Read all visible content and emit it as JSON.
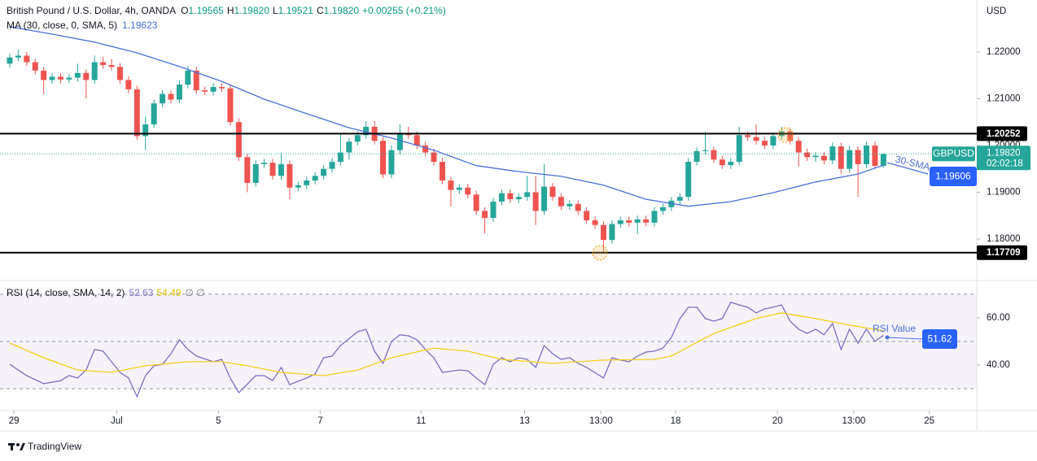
{
  "header": {
    "symbol": "British Pound / U.S. Dollar, 4h, OANDA",
    "ohlc": [
      [
        "O",
        "1.19565"
      ],
      [
        "H",
        "1.19820"
      ],
      [
        "L",
        "1.19521"
      ],
      [
        "C",
        "1.19820"
      ]
    ],
    "change": "+0.00255 (+0.21%)"
  },
  "chart_data": [
    {
      "type": "candlestick",
      "currency": "USD",
      "up_color": "#26a69a",
      "down_color": "#ef5350",
      "open": [
        1.2175,
        1.2188,
        1.2192,
        1.2178,
        1.216,
        1.214,
        1.2147,
        1.2141,
        1.2145,
        1.2155,
        1.214,
        1.2178,
        1.2172,
        1.2168,
        1.214,
        1.212,
        1.202,
        1.2045,
        1.209,
        1.211,
        1.2098,
        1.213,
        1.216,
        1.2118,
        1.2115,
        1.2125,
        1.2122,
        1.205,
        1.1975,
        1.192,
        1.196,
        1.1963,
        1.1935,
        1.196,
        1.191,
        1.1915,
        1.1925,
        1.1935,
        1.195,
        1.1965,
        1.1985,
        1.2008,
        1.2022,
        1.204,
        1.201,
        1.1938,
        1.199,
        1.2025,
        1.2022,
        1.2,
        1.1985,
        1.1965,
        1.1925,
        1.1905,
        1.191,
        1.1895,
        1.186,
        1.1845,
        1.188,
        1.1898,
        1.1885,
        1.189,
        1.19,
        1.186,
        1.1912,
        1.189,
        1.187,
        1.1875,
        1.186,
        1.184,
        1.183,
        1.1798,
        1.1832,
        1.184,
        1.1835,
        1.1842,
        1.1835,
        1.186,
        1.1868,
        1.1882,
        1.189,
        1.1965,
        1.1988,
        1.199,
        1.197,
        1.1958,
        1.1965,
        1.2022,
        1.2018,
        1.201,
        1.2,
        1.202,
        1.203,
        1.201,
        1.1985,
        1.1975,
        1.1978,
        1.1968,
        1.1998,
        1.195,
        1.199,
        1.196,
        1.2,
        1.19565
      ],
      "high": [
        1.2196,
        1.2205,
        1.22,
        1.2186,
        1.2168,
        1.2155,
        1.2155,
        1.2153,
        1.2175,
        1.2163,
        1.2192,
        1.219,
        1.2185,
        1.2176,
        1.2148,
        1.2128,
        1.2062,
        1.2098,
        1.2118,
        1.2118,
        1.214,
        1.217,
        1.2168,
        1.2126,
        1.2133,
        1.2133,
        1.213,
        1.2058,
        1.1983,
        1.1968,
        1.1971,
        1.1971,
        1.1985,
        1.1968,
        1.1923,
        1.1933,
        1.1943,
        1.1958,
        1.1973,
        1.2025,
        1.2016,
        1.203,
        1.2052,
        1.2052,
        1.2018,
        1.2,
        1.2045,
        1.204,
        1.203,
        1.2008,
        1.1993,
        1.1973,
        1.1933,
        1.1918,
        1.1918,
        1.1903,
        1.1868,
        1.1888,
        1.1906,
        1.1906,
        1.1898,
        1.1935,
        1.1935,
        1.196,
        1.192,
        1.1898,
        1.1883,
        1.1883,
        1.1868,
        1.1848,
        1.1838,
        1.184,
        1.1848,
        1.1848,
        1.185,
        1.185,
        1.1868,
        1.1876,
        1.189,
        1.1898,
        1.1973,
        1.1996,
        1.203,
        1.1998,
        1.1978,
        1.1973,
        1.204,
        1.203,
        1.2045,
        1.2018,
        1.2028,
        1.204,
        1.2038,
        1.2018,
        1.1993,
        1.1986,
        1.1986,
        1.2006,
        1.2006,
        1.1998,
        1.1998,
        1.2008,
        1.2008,
        1.1982
      ],
      "low": [
        1.2167,
        1.218,
        1.217,
        1.2152,
        1.211,
        1.2132,
        1.2133,
        1.2133,
        1.2137,
        1.21,
        1.2132,
        1.2164,
        1.216,
        1.2132,
        1.2112,
        1.2012,
        1.199,
        1.2037,
        1.2082,
        1.209,
        1.209,
        1.2122,
        1.211,
        1.2107,
        1.2107,
        1.2114,
        1.2042,
        1.1967,
        1.19,
        1.1912,
        1.1952,
        1.1927,
        1.1927,
        1.1885,
        1.1902,
        1.1907,
        1.1917,
        1.1927,
        1.1942,
        1.1957,
        1.197,
        1.2,
        1.2014,
        1.2002,
        1.193,
        1.193,
        1.1982,
        1.2014,
        1.1992,
        1.1977,
        1.1957,
        1.1917,
        1.187,
        1.1897,
        1.1887,
        1.1852,
        1.1812,
        1.1837,
        1.1872,
        1.1877,
        1.1877,
        1.1882,
        1.183,
        1.1852,
        1.1882,
        1.1862,
        1.1862,
        1.1852,
        1.1832,
        1.1822,
        1.1771,
        1.179,
        1.1824,
        1.1827,
        1.181,
        1.1827,
        1.1827,
        1.1852,
        1.186,
        1.1874,
        1.1882,
        1.1957,
        1.198,
        1.1962,
        1.195,
        1.195,
        1.1957,
        1.201,
        1.2002,
        1.1992,
        1.1992,
        1.2012,
        1.2002,
        1.1955,
        1.1967,
        1.1965,
        1.196,
        1.196,
        1.194,
        1.1942,
        1.189,
        1.1952,
        1.195,
        1.19521
      ],
      "close": [
        1.2188,
        1.2192,
        1.2178,
        1.216,
        1.214,
        1.2147,
        1.2141,
        1.2145,
        1.2155,
        1.214,
        1.2178,
        1.2172,
        1.2168,
        1.214,
        1.212,
        1.202,
        1.2045,
        1.209,
        1.211,
        1.2098,
        1.213,
        1.216,
        1.2118,
        1.2115,
        1.2125,
        1.2122,
        1.205,
        1.1975,
        1.192,
        1.196,
        1.1963,
        1.1935,
        1.196,
        1.191,
        1.1915,
        1.1925,
        1.1935,
        1.195,
        1.1965,
        1.1985,
        1.2008,
        1.2022,
        1.204,
        1.201,
        1.1938,
        1.199,
        1.2025,
        1.2022,
        1.2,
        1.1985,
        1.1965,
        1.1925,
        1.1905,
        1.191,
        1.1895,
        1.186,
        1.1845,
        1.188,
        1.1898,
        1.1885,
        1.189,
        1.19,
        1.186,
        1.1912,
        1.189,
        1.187,
        1.1875,
        1.186,
        1.184,
        1.183,
        1.1798,
        1.1832,
        1.184,
        1.1835,
        1.1842,
        1.1835,
        1.186,
        1.1868,
        1.1882,
        1.189,
        1.1965,
        1.1988,
        1.199,
        1.197,
        1.1958,
        1.1965,
        1.2022,
        1.2018,
        1.201,
        1.2,
        1.202,
        1.203,
        1.201,
        1.1985,
        1.1975,
        1.1978,
        1.1968,
        1.1998,
        1.195,
        1.199,
        1.196,
        1.2,
        1.19565,
        1.1982
      ],
      "xlim": [
        -1.15,
        114
      ],
      "ylim": [
        1.172,
        1.2311
      ],
      "yticks": [
        {
          "value": 1.22,
          "label": "1.22000"
        },
        {
          "value": 1.21,
          "label": "1.21000"
        },
        {
          "value": 1.2,
          "label": "1.20000"
        },
        {
          "value": 1.19,
          "label": "1.19000"
        },
        {
          "value": 1.18,
          "label": "1.18000"
        }
      ],
      "xticks": [
        {
          "value": 0.5,
          "label": "29"
        },
        {
          "value": 12.6,
          "label": "Jul"
        },
        {
          "value": 24.6,
          "label": "5"
        },
        {
          "value": 36.6,
          "label": "7"
        },
        {
          "value": 48.5,
          "label": "11"
        },
        {
          "value": 60.7,
          "label": "13"
        },
        {
          "value": 69.7,
          "label": "13:00"
        },
        {
          "value": 78.5,
          "label": "18"
        },
        {
          "value": 90.5,
          "label": "20"
        },
        {
          "value": 99.5,
          "label": "13:00"
        },
        {
          "value": 108.4,
          "label": "25"
        }
      ],
      "series": [
        {
          "name": "MA (30, close, 0, SMA, 5)",
          "color": "#4a6fdc",
          "legend_value": "1.19623",
          "x": [
            0,
            5,
            10,
            15,
            20,
            25,
            30,
            35,
            40,
            45,
            50,
            55,
            60,
            65,
            70,
            75,
            80,
            85,
            90,
            95,
            100,
            103
          ],
          "values": [
            1.2254,
            1.2238,
            1.2221,
            1.2198,
            1.2169,
            1.2137,
            1.2099,
            1.2068,
            1.2038,
            1.2016,
            1.199,
            1.1957,
            1.1944,
            1.1934,
            1.1915,
            1.1885,
            1.187,
            1.188,
            1.1899,
            1.1922,
            1.1939,
            1.1958
          ]
        }
      ],
      "levels": [
        {
          "value": 1.20252,
          "label": "1.20252"
        },
        {
          "value": 1.17709,
          "label": "1.17709"
        }
      ],
      "last_price": {
        "symbol": "GBPUSD",
        "value": 1.1982,
        "label": "1.19820",
        "countdown": "02:02:18"
      },
      "ma_box": "1.19606",
      "annotation": "30-SMA"
    },
    {
      "type": "line",
      "title": "RSI (14, close, SMA, 14, 2)",
      "legend_values": [
        "52.63",
        "54.49"
      ],
      "legend_flags": "∅ ∅",
      "xlim": [
        -1.15,
        114
      ],
      "ylim": [
        20.7,
        74.1
      ],
      "yticks": [
        {
          "value": 60,
          "label": "60.00"
        },
        {
          "value": 40,
          "label": "40.00"
        }
      ],
      "levels": [
        70,
        50,
        30
      ],
      "series": [
        {
          "color": "#7e6fc0",
          "x": [
            0,
            1,
            2,
            4,
            6,
            7,
            8,
            9,
            10,
            11,
            12,
            13,
            14,
            15,
            16,
            17,
            18,
            19,
            20,
            21,
            22,
            24,
            25,
            26,
            27,
            29,
            30,
            31,
            32,
            33,
            35,
            36,
            37,
            38,
            39,
            41,
            42,
            43,
            44,
            45,
            46,
            47,
            48,
            49,
            50,
            51,
            53,
            54,
            55,
            56,
            57,
            58,
            59,
            60,
            61,
            62,
            63,
            64,
            65,
            66,
            67,
            68,
            70,
            71,
            72,
            73,
            74,
            75,
            76,
            77,
            78,
            79,
            80,
            81,
            82,
            83,
            84,
            85,
            86,
            87,
            88,
            89,
            90,
            91,
            92,
            93,
            94,
            95,
            96,
            97,
            98,
            99,
            100,
            101,
            102,
            103
          ],
          "values": [
            40.3,
            37.9,
            35.5,
            32.1,
            33.4,
            35.5,
            34.5,
            37.9,
            46.6,
            45.9,
            41.4,
            36.9,
            34.5,
            26.6,
            35.5,
            39.7,
            40.3,
            44.8,
            50.7,
            46.6,
            43.8,
            41.4,
            42.4,
            34.5,
            28.3,
            35.5,
            35.5,
            33.4,
            39.0,
            31.7,
            34.5,
            36.2,
            43.1,
            43.8,
            48.3,
            54.1,
            55.2,
            45.9,
            40.7,
            50.0,
            52.8,
            52.4,
            50.7,
            46.6,
            43.1,
            36.9,
            37.9,
            37.6,
            34.5,
            31.7,
            40.3,
            43.1,
            41.4,
            43.1,
            42.4,
            39.0,
            48.3,
            44.8,
            42.4,
            43.1,
            40.7,
            39.0,
            34.5,
            43.1,
            42.1,
            41.4,
            43.8,
            45.5,
            45.9,
            47.2,
            51.7,
            59.7,
            64.5,
            64.5,
            59.7,
            58.6,
            59.7,
            66.6,
            65.5,
            64.5,
            62.1,
            63.8,
            64.5,
            65.5,
            58.6,
            55.2,
            53.4,
            55.2,
            52.8,
            57.6,
            46.6,
            55.2,
            49.3,
            55.2,
            50.0,
            52.63
          ]
        },
        {
          "color": "#f2d21b",
          "x": [
            0,
            4,
            8,
            12,
            16,
            21,
            25,
            28,
            32,
            37,
            41,
            45,
            50,
            54,
            58,
            64,
            70,
            76,
            78,
            83,
            88,
            91,
            95,
            99,
            103
          ],
          "values": [
            49.3,
            43.1,
            37.9,
            36.9,
            39.7,
            41.4,
            41.4,
            39.7,
            36.9,
            35.5,
            37.9,
            43.1,
            47.2,
            45.9,
            42.4,
            40.7,
            42.1,
            42.4,
            43.8,
            53.4,
            59.7,
            62.1,
            59.7,
            56.9,
            54.49
          ]
        }
      ],
      "box": "51.62",
      "annotation": "RSI Value"
    }
  ],
  "footer": {
    "brand": "TradingView"
  }
}
